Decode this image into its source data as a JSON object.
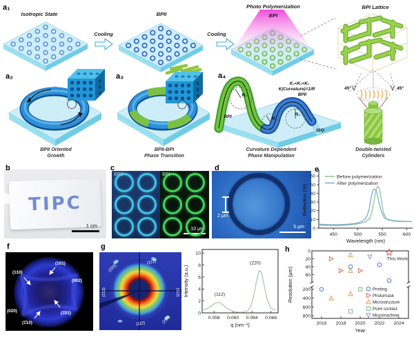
{
  "figure": {
    "panel_labels": {
      "a1": "a₁",
      "a2": "a₂",
      "a3": "a₃",
      "a4": "a₄",
      "b": "b",
      "c": "c",
      "d": "d",
      "e": "e",
      "f": "f",
      "g": "g",
      "h": "h"
    }
  },
  "schematic": {
    "stage1_title": "Isotropic State",
    "stage2_title": "BPII",
    "stage3_title1": "Photo Polymerization",
    "stage3_title2": "BPI",
    "stage4_title": "BPI Lattice",
    "cooling1": "Cooling",
    "cooling2": "Cooling",
    "a2_caption1": "BPII Oriented",
    "a2_caption2": "Growth",
    "a3_caption1": "BPII-BPI",
    "a3_caption2": "Phase Transition",
    "a4_caption1": "Curvature Dependent",
    "a4_caption2": "Phase Manipulation",
    "dtc_caption1": "Double-twisted",
    "dtc_caption2": "Cylinders",
    "a4_k_inequality": "K₃<K₂<K₁",
    "a4_curvature_eq": "K(Curvature)=1/R",
    "a4_bpii": "BPII",
    "a4_bpi": "BPI",
    "a4_iso": "ISO",
    "a4_r1": "R₁",
    "a4_r2": "R₂",
    "a4_r3": "R₃",
    "dtc_angle_left": "45°",
    "dtc_angle_right": "45°"
  },
  "panel_b": {
    "sample_text": "TIPC",
    "scale_bar": "1 cm"
  },
  "panel_c": {
    "left_phase": "BPII",
    "right_phase": "BPI",
    "scale_bar": "10 μm"
  },
  "panel_d": {
    "feature_width": "2 μm",
    "scale_bar": "5 μm"
  },
  "panel_f": {
    "reflections": {
      "r110": "(110)",
      "r101": "(101)",
      "r002": "(002)",
      "rm101": "(1̄01)",
      "r020": "(020)",
      "rm110": "(1̄10)"
    }
  },
  "panel_g": {
    "reflections": {
      "top_left": "(2̄20)",
      "top_center": "(1̄12̄)",
      "left": "(1̄12)",
      "right": "(112̄)",
      "bottom_center": "(11̄2)",
      "bottom_right": "(22̄0)"
    }
  },
  "chart_data": [
    {
      "id": "reflection_spectrum",
      "type": "line",
      "xlabel": "Wavelength (nm)",
      "ylabel": "Reflection (%)",
      "xlim": [
        420,
        612
      ],
      "ylim": [
        0,
        65
      ],
      "xticks": [
        450,
        500,
        550,
        600
      ],
      "yticks": [
        0,
        10,
        20,
        30,
        40,
        50,
        60
      ],
      "legend_position": "top-left",
      "series": [
        {
          "name": "Before polymerization",
          "color": "#8fc48f",
          "x": [
            420,
            440,
            460,
            480,
            495,
            505,
            512,
            518,
            524,
            528,
            532,
            536,
            540,
            544,
            548,
            552,
            558,
            565,
            575,
            590,
            610
          ],
          "y": [
            3.5,
            3,
            3,
            3.5,
            4.5,
            5.5,
            6.5,
            8,
            11,
            17,
            28,
            41,
            48,
            46,
            33,
            18,
            11,
            9.5,
            8.5,
            8,
            7.5
          ]
        },
        {
          "name": "After polymerization",
          "color": "#74acd2",
          "x": [
            420,
            440,
            460,
            480,
            495,
            503,
            509,
            514,
            519,
            523,
            527,
            531,
            535,
            539,
            543,
            548,
            554,
            562,
            575,
            590,
            610
          ],
          "y": [
            4.5,
            4,
            4,
            4.5,
            5.5,
            6.5,
            8,
            10,
            14,
            22,
            35,
            44,
            45,
            41,
            30,
            19,
            12,
            9.5,
            8,
            7.5,
            7.5
          ]
        }
      ]
    },
    {
      "id": "saxs_intensity",
      "type": "line",
      "xlabel": "q (nm⁻¹)",
      "ylabel": "Intensity (a.u.)",
      "xlim": [
        0.0535,
        0.0695
      ],
      "ylim": [
        0,
        10.6
      ],
      "xticks": [
        0.056,
        0.06,
        0.064,
        0.068
      ],
      "yticks": [
        0,
        2,
        4,
        6,
        8,
        10
      ],
      "annotations": [
        {
          "text": "(112)",
          "x": 0.0572,
          "y": 2.9
        },
        {
          "text": "(220)",
          "x": 0.0647,
          "y": 8.1
        }
      ],
      "series": [
        {
          "name": "intensity",
          "color": "#a3c8a3",
          "x": [
            0.0535,
            0.0545,
            0.0555,
            0.0562,
            0.0568,
            0.0572,
            0.0578,
            0.0585,
            0.0595,
            0.0605,
            0.0615,
            0.0625,
            0.0632,
            0.0638,
            0.0644,
            0.065,
            0.0655,
            0.066,
            0.0666,
            0.0672,
            0.068,
            0.069
          ],
          "y": [
            0.4,
            0.7,
            1.2,
            1.6,
            1.75,
            1.7,
            1.4,
            0.9,
            0.4,
            0.15,
            0.1,
            0.15,
            0.4,
            1.2,
            3.0,
            5.5,
            7.1,
            6.8,
            4.5,
            2.2,
            0.8,
            0.45
          ]
        }
      ]
    },
    {
      "id": "resolution_vs_year",
      "type": "scatter",
      "xlabel": "Year",
      "ylabel": "Resolution (μm)",
      "xlim": [
        2015,
        2025
      ],
      "xticks": [
        2016,
        2018,
        2020,
        2022,
        2024
      ],
      "y_axis_break": {
        "upper_ticks": [
          0,
          20,
          40,
          60
        ],
        "upper_range": [
          0,
          80
        ],
        "lower_ticks": [
          200,
          400,
          600,
          800
        ],
        "lower_range": [
          140,
          860
        ]
      },
      "highlight_label": "This Work",
      "series": [
        {
          "name": "Printing",
          "marker": "circle",
          "color": "#5577cc",
          "points": [
            [
              2016,
              200
            ],
            [
              2019,
              40
            ],
            [
              2022,
              35
            ],
            [
              2023,
              75
            ]
          ]
        },
        {
          "name": "Photomask",
          "marker": "triangle-right",
          "color": "#e0705e",
          "points": [
            [
              2017,
              20
            ],
            [
              2018,
              50
            ],
            [
              2020,
              50
            ]
          ]
        },
        {
          "name": "Microstructure",
          "marker": "triangle-up",
          "color": "#e89a50",
          "points": [
            [
              2017,
              400
            ],
            [
              2019,
              10
            ],
            [
              2019,
              50
            ],
            [
              2019,
              300
            ]
          ]
        },
        {
          "name": "Point contact",
          "marker": "square",
          "color": "#72c276",
          "points": [
            [
              2019,
              700
            ],
            [
              2020,
              200
            ]
          ]
        },
        {
          "name": "Micromachine",
          "marker": "triangle-down",
          "color": "#8890dd",
          "points": [
            [
              2021,
              15
            ]
          ]
        },
        {
          "name": "This Work",
          "marker": "star",
          "color": "#e05858",
          "points": [
            [
              2023,
              4
            ]
          ],
          "is_highlight": true
        }
      ]
    }
  ]
}
